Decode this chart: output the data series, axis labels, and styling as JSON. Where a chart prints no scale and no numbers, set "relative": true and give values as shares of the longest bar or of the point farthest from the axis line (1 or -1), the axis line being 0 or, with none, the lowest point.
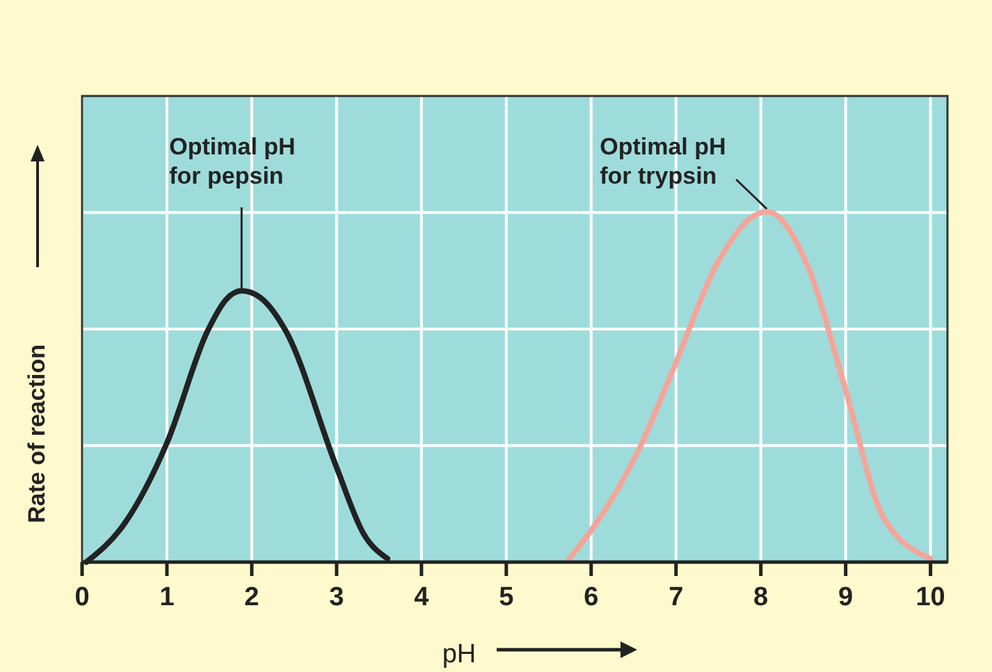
{
  "chart_data": {
    "type": "line",
    "relative": true,
    "xlabel": "pH",
    "ylabel": "Rate of reaction",
    "xlim": [
      0,
      10.2
    ],
    "xticks": [
      0,
      1,
      2,
      3,
      4,
      5,
      6,
      7,
      8,
      9,
      10
    ],
    "grid": true,
    "line_style": "solid",
    "marker": "none",
    "series": [
      {
        "color": "#222222",
        "x": [
          0.05,
          0.5,
          1,
          1.48,
          1.7,
          1.88,
          2.1,
          2.4,
          3,
          3.32,
          3.6
        ],
        "values": [
          0,
          0.11,
          0.34,
          0.66,
          0.75,
          0.774,
          0.755,
          0.66,
          0.27,
          0.08,
          0.01
        ]
      },
      {
        "color": "#f4a59a",
        "x": [
          5.74,
          6,
          6.56,
          7,
          7.48,
          8.07,
          8.56,
          9,
          9.44,
          10
        ],
        "values": [
          0.01,
          0.09,
          0.32,
          0.57,
          0.85,
          1,
          0.84,
          0.49,
          0.13,
          0.01
        ]
      }
    ],
    "annotations": [
      {
        "text": "Optimal pH\nfor pepsin",
        "x": 1.88,
        "y": 0.774
      },
      {
        "text": "Optimal pH\nfor trypsin",
        "x": 8.07,
        "y": 1
      }
    ]
  }
}
